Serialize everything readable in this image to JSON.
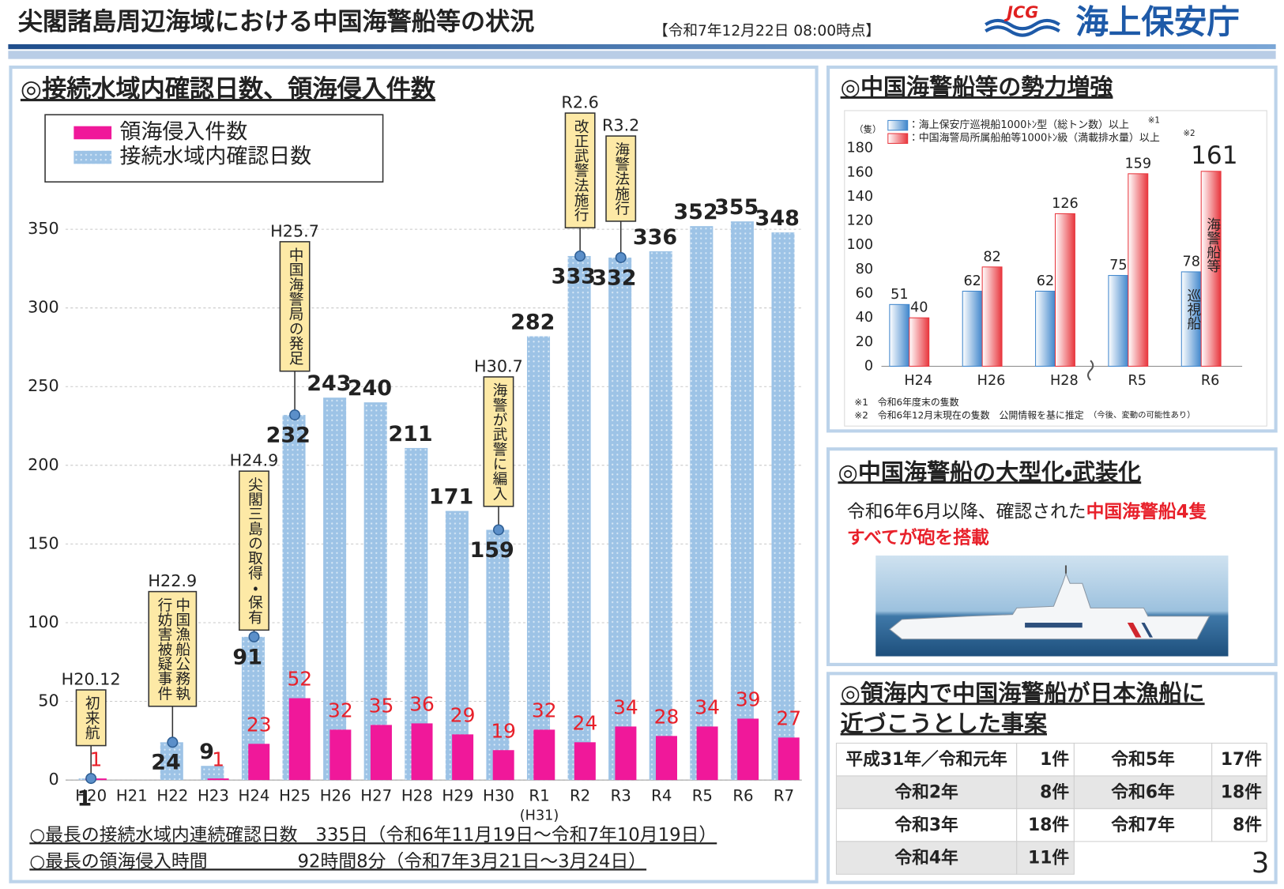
{
  "header": {
    "title": "尖閣諸島周辺海域における中国海警船等の状況",
    "timestamp": "【令和7年12月22日 08:00時点】",
    "logo": "JCG",
    "org_name": "海上保安庁"
  },
  "page_number": "3",
  "chart_data": [
    {
      "type": "bar",
      "title": "◎接続水域内確認日数、領海侵入件数",
      "categories": [
        "H20",
        "H21",
        "H22",
        "H23",
        "H24",
        "H25",
        "H26",
        "H27",
        "H28",
        "H29",
        "H30",
        "R1",
        "R2",
        "R3",
        "R4",
        "R5",
        "R6",
        "R7"
      ],
      "sublabels": [
        null,
        null,
        null,
        null,
        null,
        null,
        null,
        null,
        null,
        null,
        null,
        "(H31)",
        null,
        null,
        null,
        null,
        null,
        null
      ],
      "series": [
        {
          "name": "領海侵入件数",
          "color": "#f0189a",
          "label_color": "#e8202a",
          "values": [
            1,
            null,
            null,
            1,
            23,
            52,
            32,
            35,
            36,
            29,
            19,
            32,
            24,
            34,
            28,
            34,
            39,
            27
          ]
        },
        {
          "name": "接続水域内確認日数",
          "color": "#9dc3e6",
          "label_color": "#222222",
          "values": [
            1,
            null,
            24,
            9,
            91,
            232,
            243,
            240,
            211,
            171,
            159,
            282,
            333,
            332,
            336,
            352,
            355,
            348
          ]
        }
      ],
      "ylim": [
        0,
        365
      ],
      "yticks": [
        0,
        50,
        100,
        150,
        200,
        250,
        300,
        350
      ],
      "grid": true,
      "annotations": [
        {
          "at": "H20",
          "date": "H20.12",
          "lines": [
            "初来航"
          ]
        },
        {
          "at": "H22",
          "date": "H22.9",
          "lines": [
            "中国漁船公務執",
            "行妨害被疑事件"
          ]
        },
        {
          "at": "H24",
          "date": "H24.9",
          "lines": [
            "尖閣三島の取得・保有"
          ]
        },
        {
          "at": "H25",
          "date": "H25.7",
          "lines": [
            "中国海警局の発足"
          ]
        },
        {
          "at": "H30",
          "date": "H30.7",
          "lines": [
            "海警が武警に編入"
          ]
        },
        {
          "at": "R2",
          "date": "R2.6",
          "lines": [
            "改正武警法施行"
          ]
        },
        {
          "at": "R3",
          "date": "R3.2",
          "lines": [
            "海警法施行"
          ]
        }
      ],
      "footnotes": [
        "○最長の接続水域内連続確認日数　335日（令和6年11月19日～令和7年10月19日）",
        "○最長の領海侵入時間　　　　　92時間8分（令和7年3月21日～3月24日）"
      ]
    },
    {
      "type": "bar",
      "title": "◎中国海警船等の勢力増強",
      "y_label": "（隻）",
      "categories": [
        "H24",
        "H26",
        "H28",
        "R5",
        "R6"
      ],
      "series": [
        {
          "name": "：海上保安庁巡視船1000ﾄﾝ型（総トン数）以上",
          "note": "※1",
          "color": "#3f86cc",
          "values": [
            51,
            62,
            62,
            75,
            78
          ],
          "inner_label": "巡視船"
        },
        {
          "name": "：中国海警局所属船舶等1000ﾄﾝ級（満載排水量）以上",
          "note": "※2",
          "color": "#e8363d",
          "values": [
            40,
            82,
            126,
            159,
            161
          ],
          "inner_label": "海警船等"
        }
      ],
      "ylim": [
        0,
        180
      ],
      "yticks": [
        0,
        20,
        40,
        60,
        80,
        100,
        120,
        140,
        160,
        180
      ],
      "grid": false,
      "notes": [
        [
          "※1　令和6年度末の隻数"
        ],
        [
          "※2　令和6年12月末現在の隻数　公開情報を基に推定",
          "（今後、変動の可能性あり）"
        ]
      ]
    }
  ],
  "armament": {
    "title": "◎中国海警船の大型化・武装化",
    "lines": [
      [
        {
          "text": "令和6年6月以降、確認された",
          "color": "#222222"
        },
        {
          "text": "中国海警船4隻",
          "color": "#e8202a"
        }
      ],
      [
        {
          "text": "すべてが砲を搭載",
          "color": "#e8202a"
        }
      ]
    ]
  },
  "incidents": {
    "title_lines": [
      "◎領海内で中国海警船が日本漁船に",
      "近づこうとした事案"
    ],
    "rows": [
      [
        "平成31年／令和元年",
        "1件",
        "令和5年",
        "17件"
      ],
      [
        "令和2年",
        "8件",
        "令和6年",
        "18件"
      ],
      [
        "令和3年",
        "18件",
        "令和7年",
        "8件"
      ],
      [
        "令和4年",
        "11件"
      ]
    ]
  }
}
